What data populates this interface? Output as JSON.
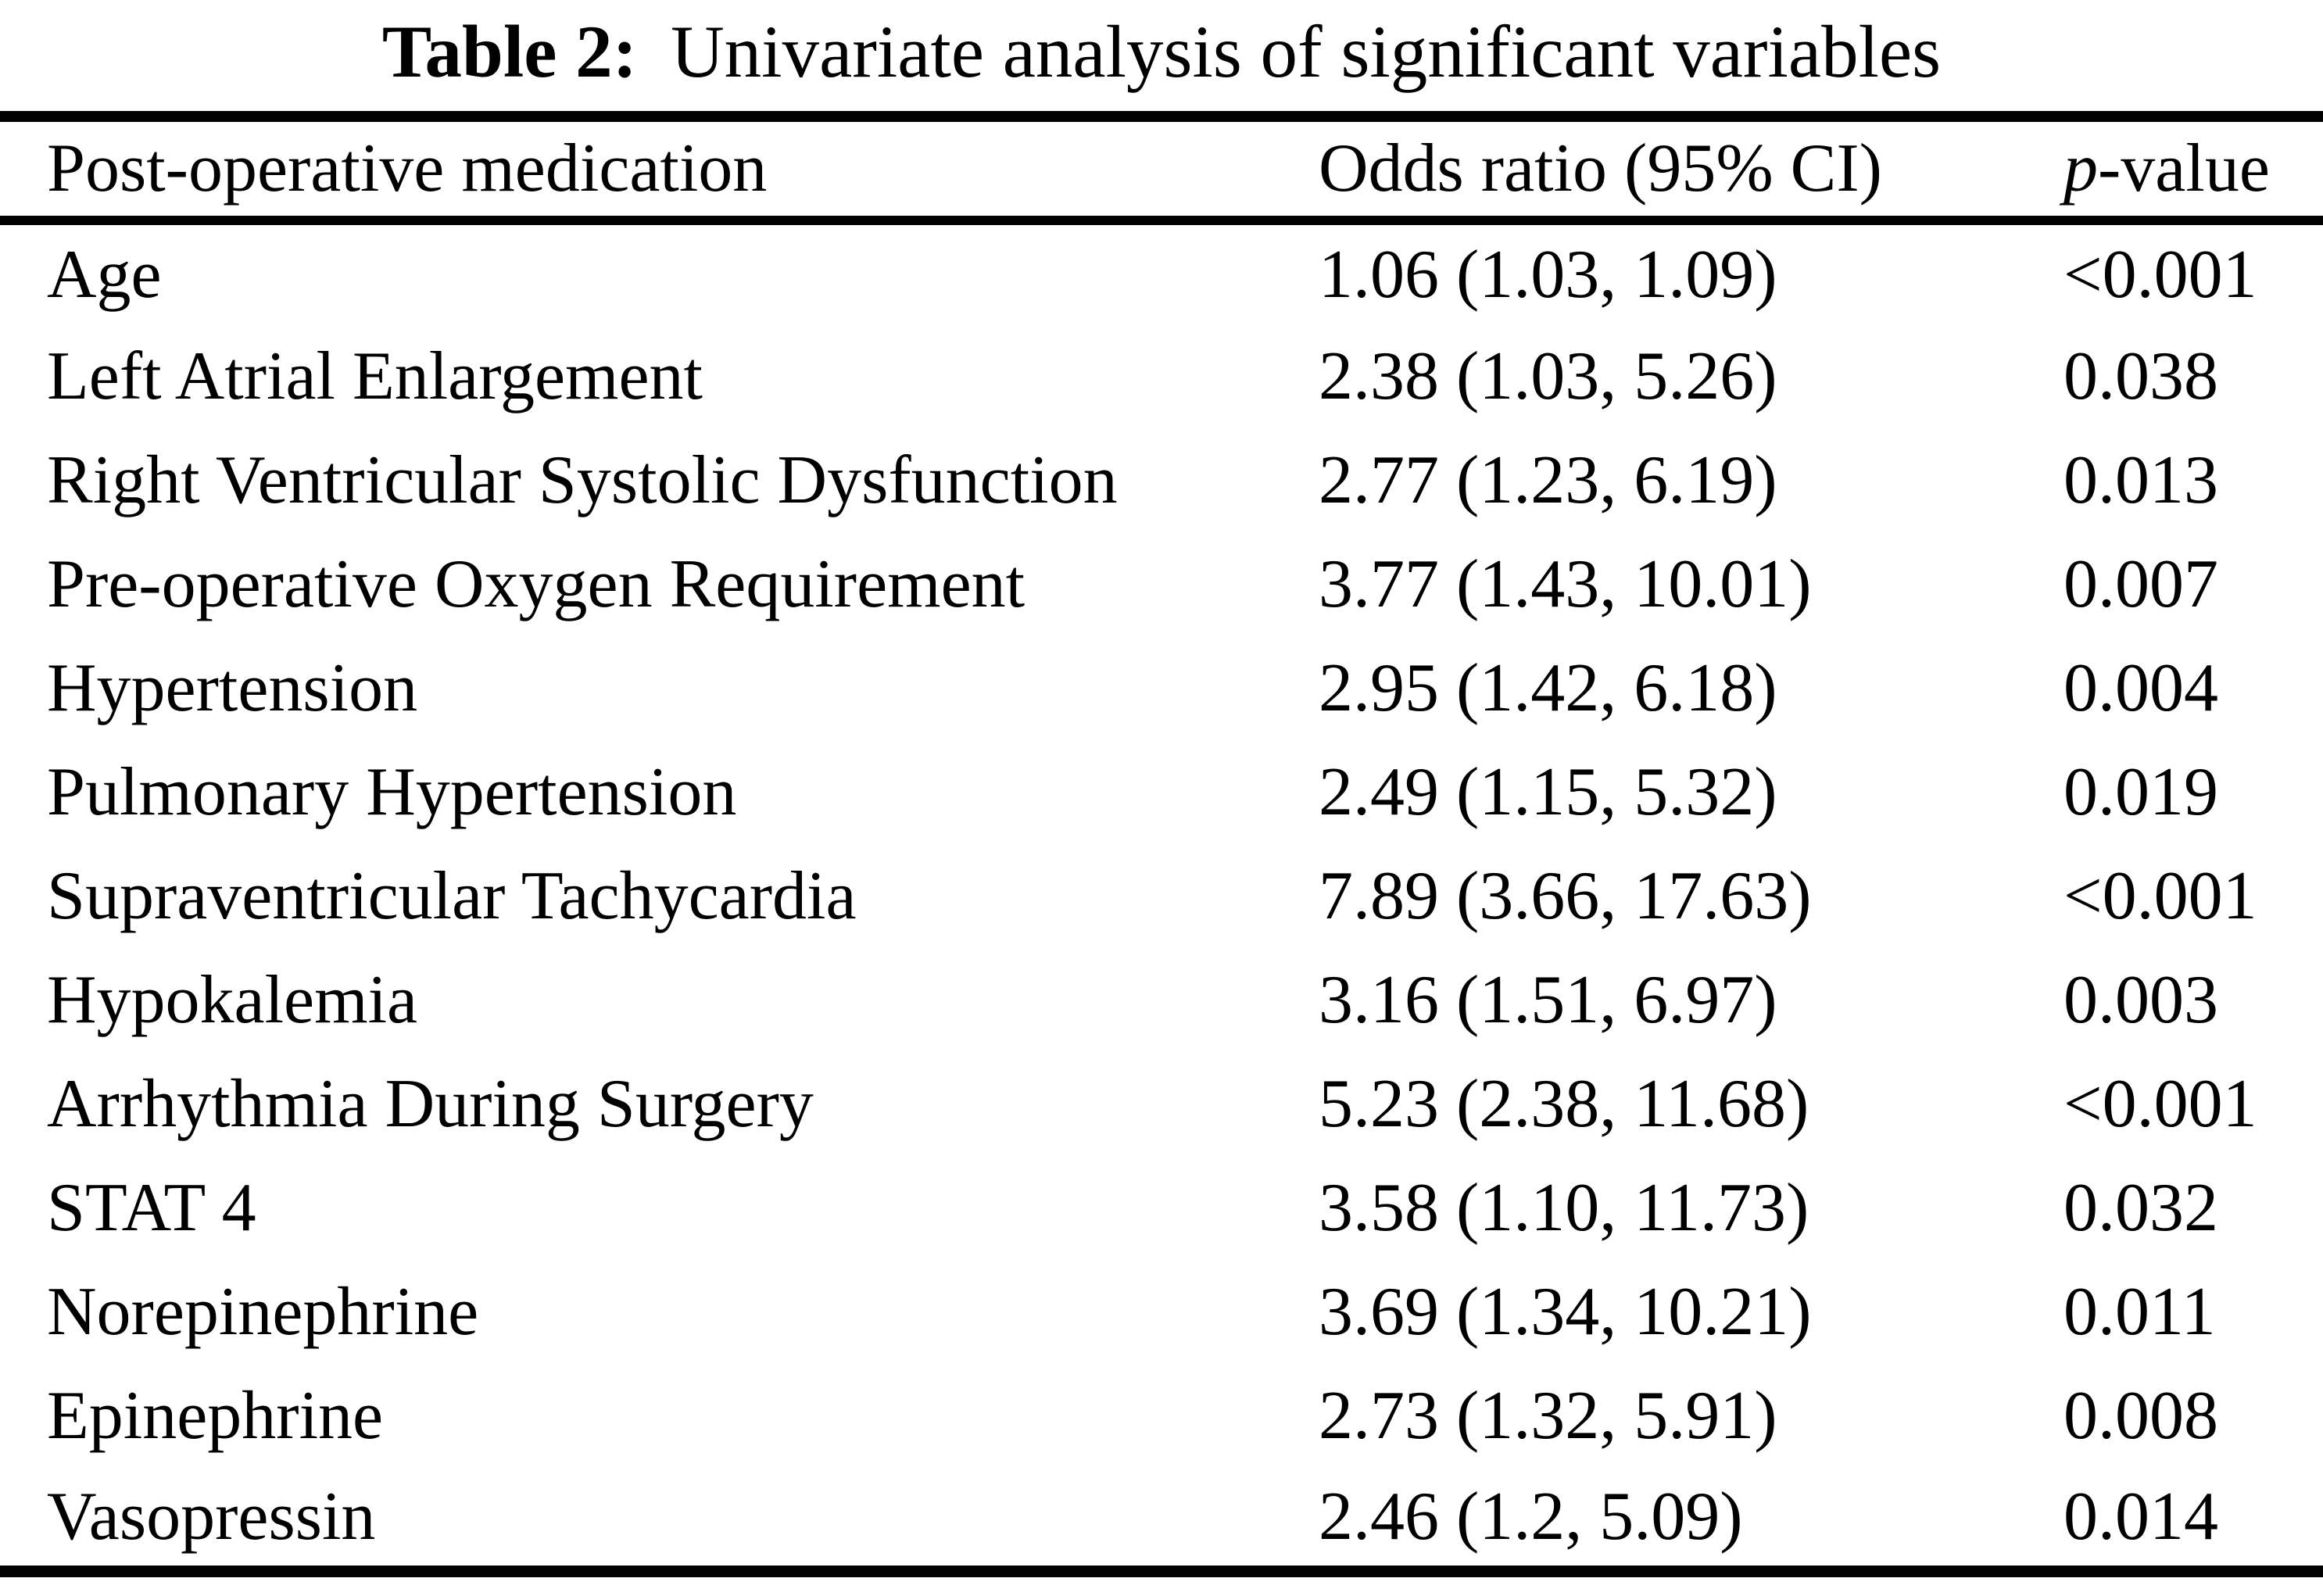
{
  "colors": {
    "background": "#ffffff",
    "text": "#000000",
    "rule": "#000000"
  },
  "caption": {
    "label": "Table 2:",
    "text": "Univariate analysis of significant variables"
  },
  "table": {
    "headers": {
      "variable": "Post-operative medication",
      "odds_ratio": "Odds ratio (95% CI)",
      "p_value_prefix": "p",
      "p_value_suffix": "-value"
    },
    "rows": [
      {
        "variable": "Age",
        "odds_ratio": "1.06 (1.03, 1.09)",
        "p_value": "<0.001"
      },
      {
        "variable": "Left Atrial Enlargement",
        "odds_ratio": "2.38 (1.03, 5.26)",
        "p_value": "0.038"
      },
      {
        "variable": "Right Ventricular Systolic Dysfunction",
        "odds_ratio": "2.77 (1.23, 6.19)",
        "p_value": "0.013"
      },
      {
        "variable": "Pre-operative Oxygen Requirement",
        "odds_ratio": "3.77 (1.43, 10.01)",
        "p_value": "0.007"
      },
      {
        "variable": "Hypertension",
        "odds_ratio": "2.95 (1.42, 6.18)",
        "p_value": "0.004"
      },
      {
        "variable": "Pulmonary Hypertension",
        "odds_ratio": "2.49 (1.15, 5.32)",
        "p_value": "0.019"
      },
      {
        "variable": "Supraventricular Tachycardia",
        "odds_ratio": "7.89 (3.66, 17.63)",
        "p_value": "<0.001"
      },
      {
        "variable": "Hypokalemia",
        "odds_ratio": "3.16 (1.51, 6.97)",
        "p_value": "0.003"
      },
      {
        "variable": "Arrhythmia During Surgery",
        "odds_ratio": "5.23 (2.38, 11.68)",
        "p_value": "<0.001"
      },
      {
        "variable": "STAT 4",
        "odds_ratio": "3.58 (1.10, 11.73)",
        "p_value": "0.032"
      },
      {
        "variable": "Norepinephrine",
        "odds_ratio": "3.69 (1.34, 10.21)",
        "p_value": "0.011"
      },
      {
        "variable": "Epinephrine",
        "odds_ratio": "2.73 (1.32, 5.91)",
        "p_value": "0.008"
      },
      {
        "variable": "Vasopressin",
        "odds_ratio": "2.46 (1.2, 5.09)",
        "p_value": "0.014"
      }
    ]
  }
}
